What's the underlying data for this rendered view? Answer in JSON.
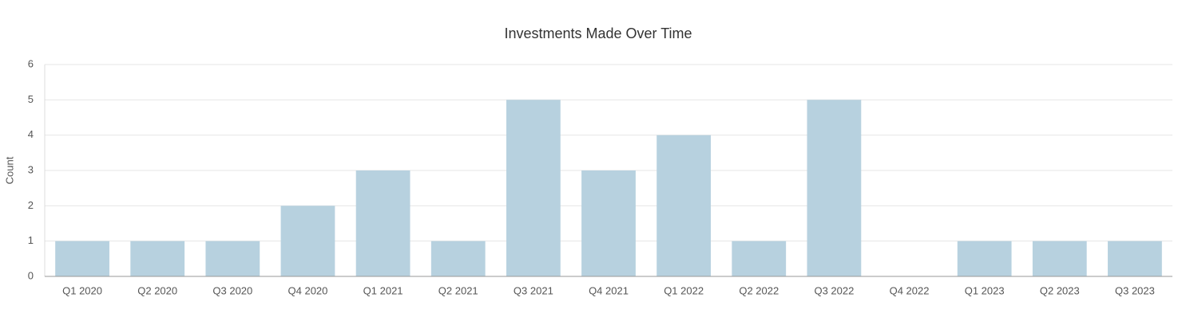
{
  "chart_data": {
    "type": "bar",
    "title": "Investments Made Over Time",
    "y_label": "Count",
    "categories": [
      "Q1 2020",
      "Q2 2020",
      "Q3 2020",
      "Q4 2020",
      "Q1 2021",
      "Q2 2021",
      "Q3 2021",
      "Q4 2021",
      "Q1 2022",
      "Q2 2022",
      "Q3 2022",
      "Q4 2022",
      "Q1 2023",
      "Q2 2023",
      "Q3 2023"
    ],
    "values": [
      1,
      1,
      1,
      2,
      3,
      1,
      5,
      3,
      4,
      1,
      5,
      0,
      1,
      1,
      1
    ],
    "color": "#b7d1df",
    "ylim": [
      0,
      6
    ],
    "yticks": [
      0,
      1,
      2,
      3,
      4,
      5,
      6
    ],
    "grid": true
  }
}
